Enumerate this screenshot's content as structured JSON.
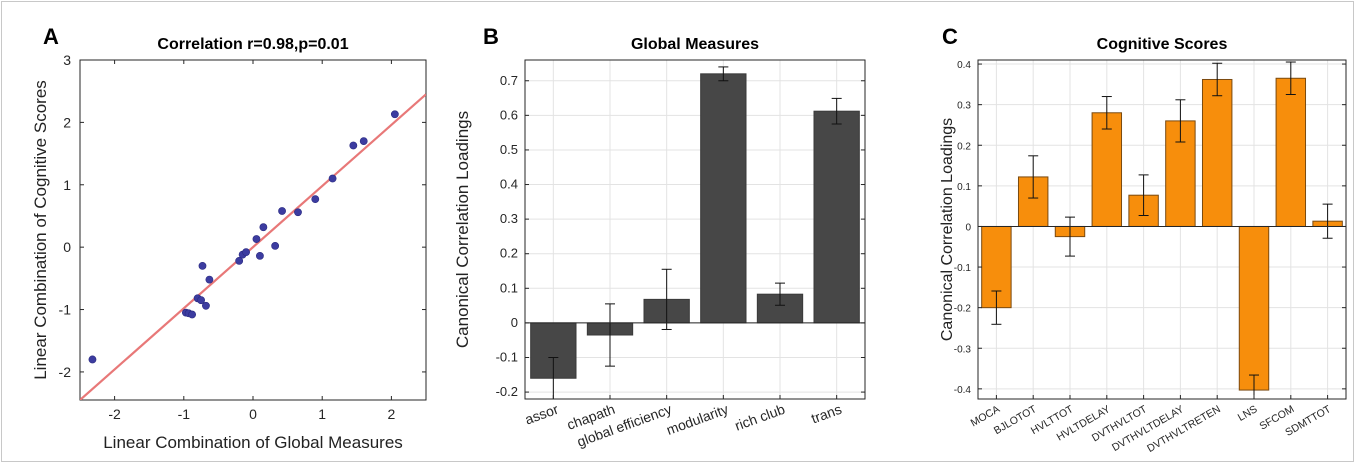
{
  "chart_data": [
    {
      "panel": "A",
      "type": "scatter",
      "title": "Correlation r=0.98,p=0.01",
      "xlabel": "Linear Combination of Global Measures",
      "ylabel": "Linear Combination of Cognitive Scores",
      "xlim": [
        -2.5,
        2.5
      ],
      "ylim": [
        -2.45,
        3
      ],
      "xticks": [
        -2,
        -1,
        0,
        1,
        2
      ],
      "yticks": [
        -2,
        -1,
        0,
        1,
        2,
        3
      ],
      "grid": false,
      "point_color": "#3c3ca0",
      "fit_line": {
        "color": "#e87878",
        "slope": 0.98,
        "intercept": 0
      },
      "points": [
        {
          "x": -2.32,
          "y": -1.8
        },
        {
          "x": -0.97,
          "y": -1.05
        },
        {
          "x": -0.93,
          "y": -1.06
        },
        {
          "x": -0.88,
          "y": -1.08
        },
        {
          "x": -0.8,
          "y": -0.82
        },
        {
          "x": -0.75,
          "y": -0.85
        },
        {
          "x": -0.68,
          "y": -0.94
        },
        {
          "x": -0.73,
          "y": -0.3
        },
        {
          "x": -0.63,
          "y": -0.52
        },
        {
          "x": -0.2,
          "y": -0.22
        },
        {
          "x": -0.15,
          "y": -0.12
        },
        {
          "x": -0.1,
          "y": -0.08
        },
        {
          "x": 0.05,
          "y": 0.13
        },
        {
          "x": 0.1,
          "y": -0.14
        },
        {
          "x": 0.15,
          "y": 0.32
        },
        {
          "x": 0.32,
          "y": 0.02
        },
        {
          "x": 0.42,
          "y": 0.58
        },
        {
          "x": 0.65,
          "y": 0.56
        },
        {
          "x": 0.9,
          "y": 0.77
        },
        {
          "x": 1.15,
          "y": 1.1
        },
        {
          "x": 1.45,
          "y": 1.63
        },
        {
          "x": 1.6,
          "y": 1.7
        },
        {
          "x": 2.05,
          "y": 2.13
        }
      ]
    },
    {
      "panel": "B",
      "type": "bar",
      "title": "Global Measures",
      "xlabel": "",
      "ylabel": "Canonical Correlation Loadings",
      "ylim": [
        -0.22,
        0.76
      ],
      "yticks": [
        -0.2,
        -0.1,
        0,
        0.1,
        0.2,
        0.3,
        0.4,
        0.5,
        0.6,
        0.7
      ],
      "grid": true,
      "bar_color": "#474747",
      "categories": [
        "assor",
        "chapath",
        "global efficiency",
        "modularity",
        "rich club",
        "trans"
      ],
      "values": [
        -0.16,
        -0.035,
        0.068,
        0.72,
        0.083,
        0.612
      ],
      "err": [
        0.06,
        0.09,
        0.087,
        0.02,
        0.032,
        0.037
      ]
    },
    {
      "panel": "C",
      "type": "bar",
      "title": "Cognitive Scores",
      "xlabel": "",
      "ylabel": "Canonical Correlation Loadings",
      "ylim": [
        -0.425,
        0.41
      ],
      "yticks": [
        -0.4,
        -0.3,
        -0.2,
        -0.1,
        0,
        0.1,
        0.2,
        0.3,
        0.4
      ],
      "grid": true,
      "bar_color": "#f78e0c",
      "categories": [
        "MOCA",
        "BJLOTOT",
        "HVLTTOT",
        "HVLTDELAY",
        "DVTHVLTOT",
        "DVTHVLTDELAY",
        "DVTHVLTRETEN",
        "LNS",
        "SFCOM",
        "SDMTTOT"
      ],
      "values": [
        -0.2,
        0.122,
        -0.025,
        0.28,
        0.077,
        0.26,
        0.362,
        -0.403,
        0.365,
        0.013
      ],
      "err": [
        0.041,
        0.052,
        0.048,
        0.04,
        0.05,
        0.052,
        0.04,
        0.037,
        0.04,
        0.042
      ]
    }
  ]
}
